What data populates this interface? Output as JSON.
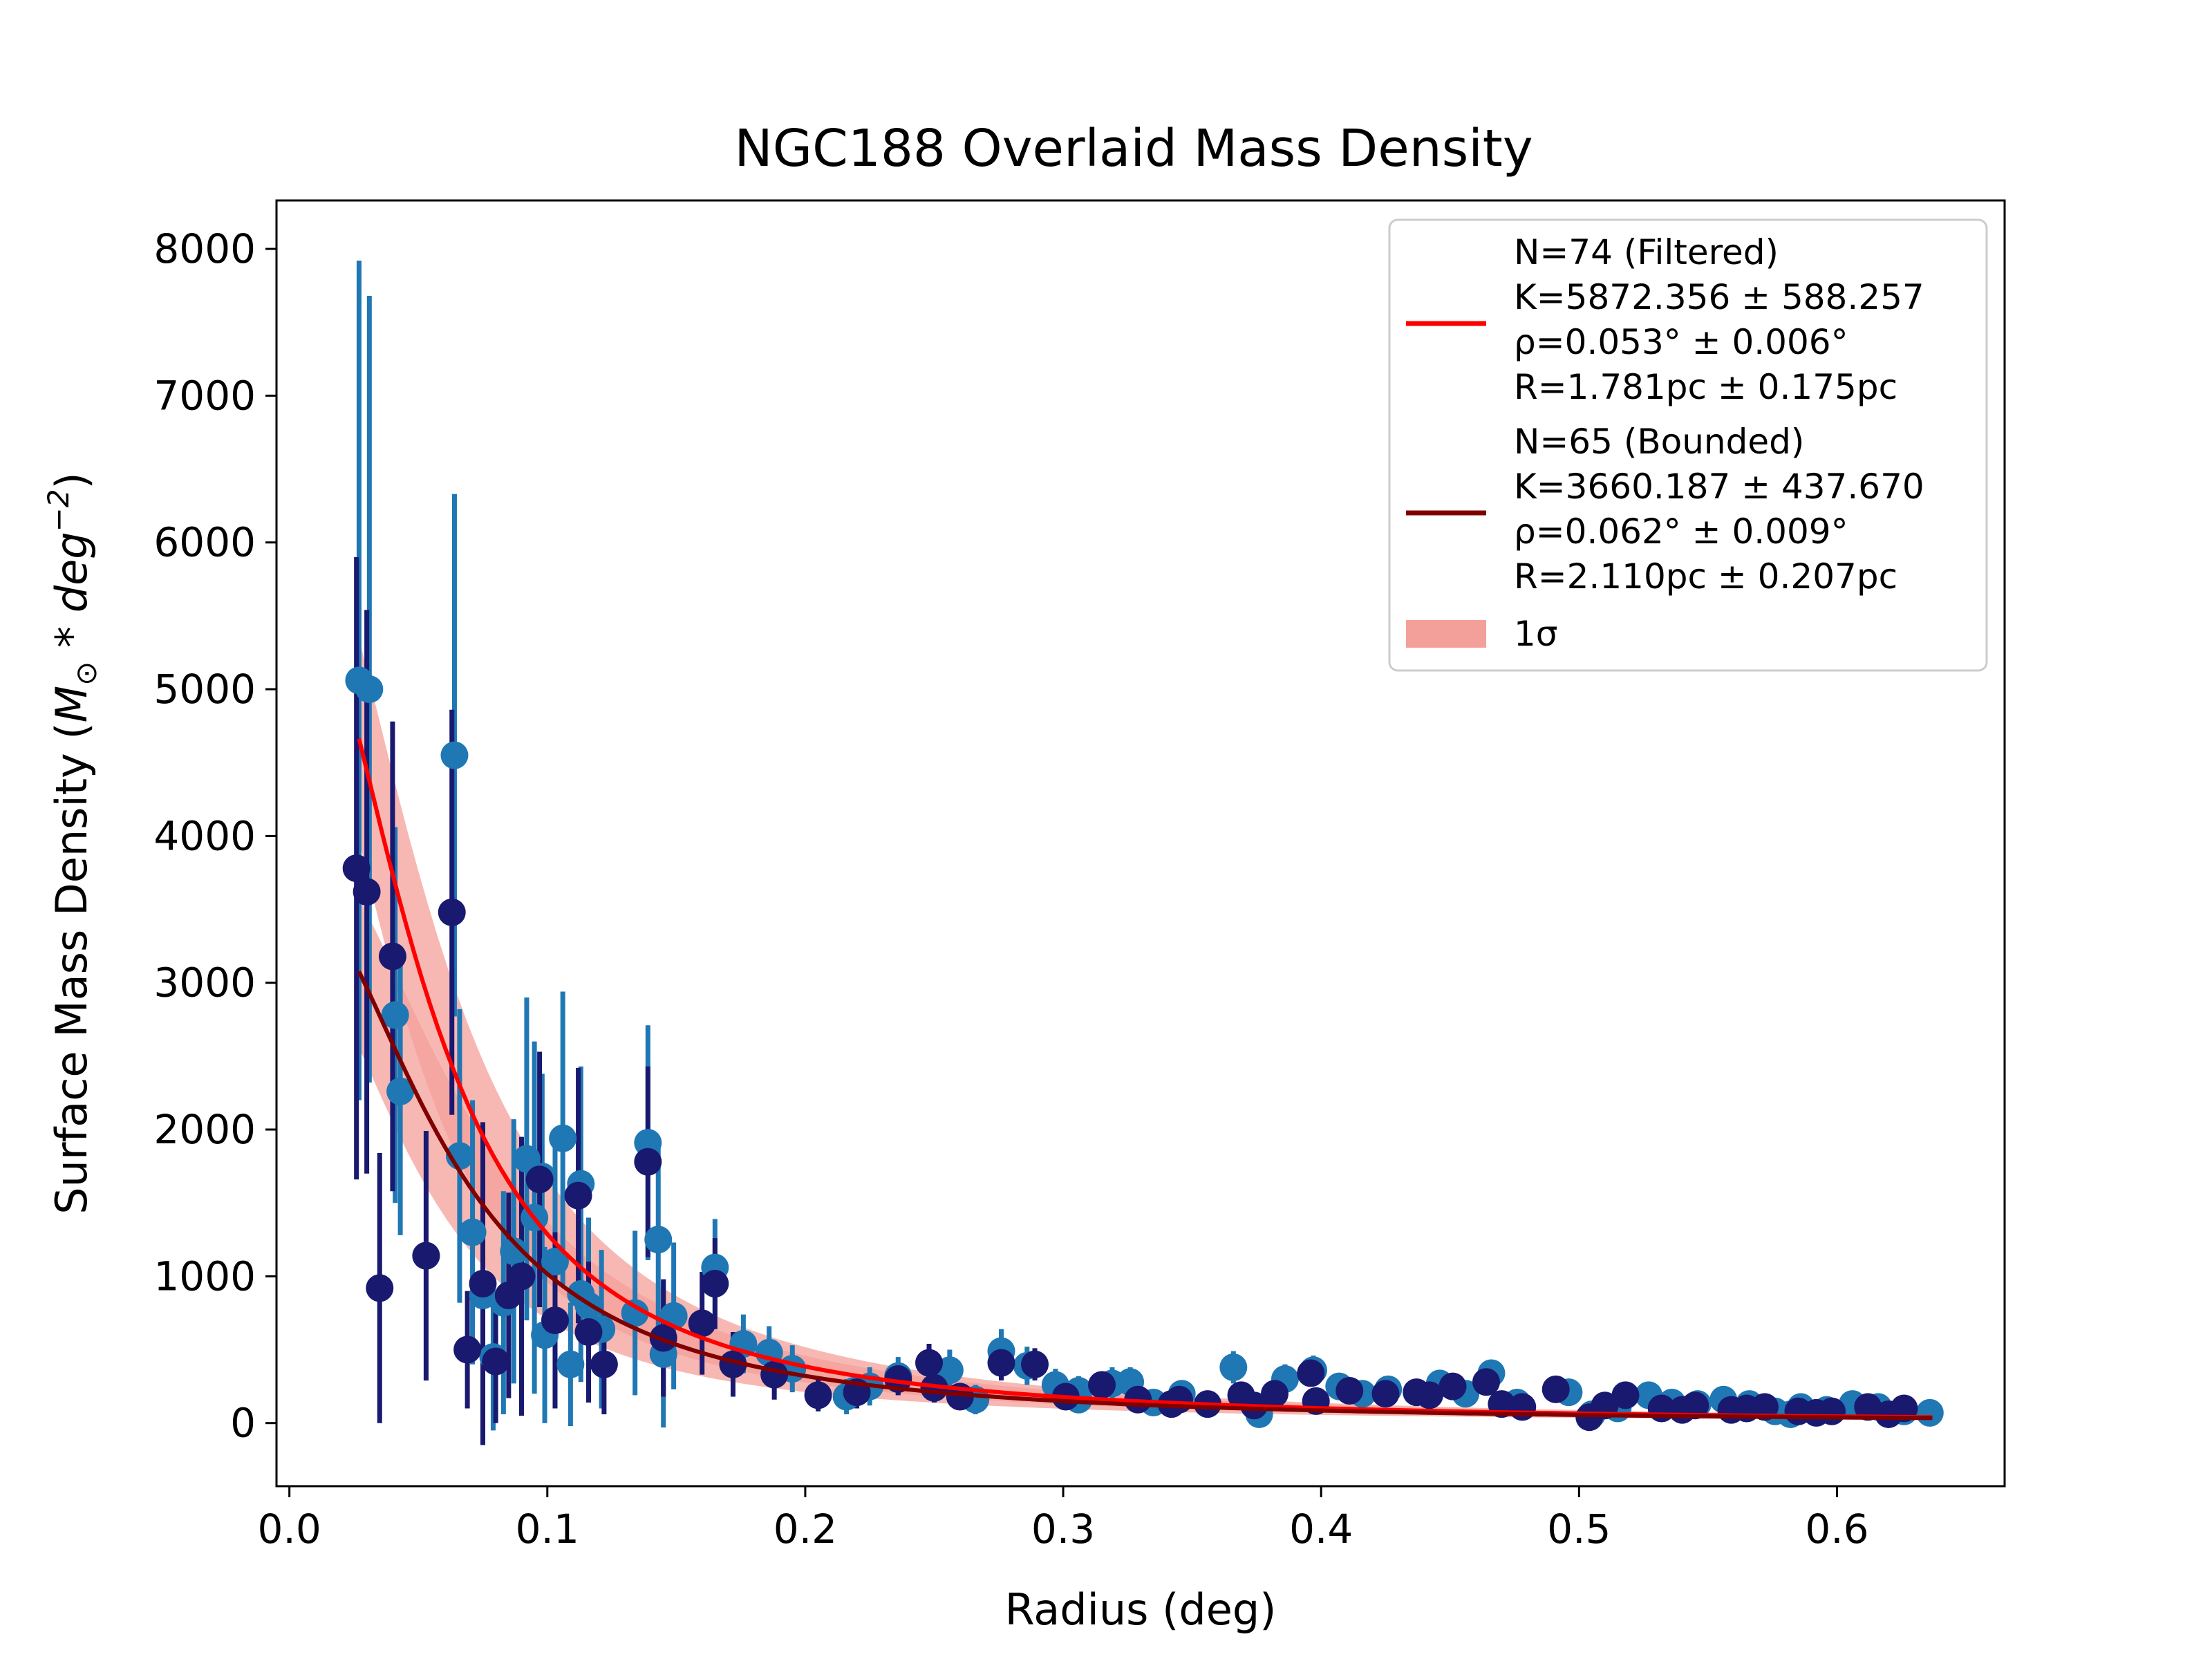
{
  "chart_data": {
    "type": "scatter",
    "title": "NGC188 Overlaid Mass Density",
    "xlabel": "Radius (deg)",
    "ylabel": "Surface Mass Density (M_⊙ * deg^−2)",
    "ylabel_parts": {
      "prefix": "Surface Mass Density (",
      "M": "M",
      "sun": "⊙",
      "op": " * ",
      "deg": "deg",
      "exp": "−2",
      "suffix": ")"
    },
    "xlim": [
      -0.005,
      0.665
    ],
    "ylim": [
      -430,
      8330
    ],
    "xticks": [
      0.0,
      0.1,
      0.2,
      0.3,
      0.4,
      0.5,
      0.6
    ],
    "xtick_labels": [
      "0.0",
      "0.1",
      "0.2",
      "0.3",
      "0.4",
      "0.5",
      "0.6"
    ],
    "yticks": [
      0,
      1000,
      2000,
      3000,
      4000,
      5000,
      6000,
      7000,
      8000
    ],
    "ytick_labels": [
      "0",
      "1000",
      "2000",
      "3000",
      "4000",
      "5000",
      "6000",
      "7000",
      "8000"
    ],
    "grid": false,
    "legend_position": "top-right",
    "legend": [
      {
        "kind": "line",
        "color": "#ff0000",
        "lines": [
          "N=74 (Filtered)",
          "K=5872.356 ± 588.257",
          "ρ=0.053° ± 0.006°",
          "R=1.781pc ± 0.175pc"
        ]
      },
      {
        "kind": "line",
        "color": "#800000",
        "lines": [
          "N=65 (Bounded)",
          "K=3660.187 ± 437.670",
          "ρ=0.062° ± 0.009°",
          "R=2.110pc ± 0.207pc"
        ]
      },
      {
        "kind": "band",
        "color": "#f4a09a",
        "lines": [
          "1σ"
        ]
      }
    ],
    "series": [
      {
        "color": "#1f77b4",
        "points": [
          [
            0.027,
            5060,
            2860
          ],
          [
            0.031,
            5000,
            2680
          ],
          [
            0.041,
            2780,
            1280
          ],
          [
            0.043,
            2260,
            980
          ],
          [
            0.053,
            1140,
            850
          ],
          [
            0.064,
            4550,
            1780
          ],
          [
            0.066,
            1820,
            1000
          ],
          [
            0.071,
            1300,
            900
          ],
          [
            0.075,
            870,
            750
          ],
          [
            0.079,
            450,
            500
          ],
          [
            0.083,
            820,
            760
          ],
          [
            0.087,
            1170,
            900
          ],
          [
            0.092,
            1800,
            1100
          ],
          [
            0.095,
            1400,
            1200
          ],
          [
            0.099,
            600,
            600
          ],
          [
            0.103,
            1100,
            900
          ],
          [
            0.106,
            1940,
            1000
          ],
          [
            0.109,
            400,
            420
          ],
          [
            0.113,
            1630,
            800
          ],
          [
            0.116,
            800,
            600
          ],
          [
            0.121,
            640,
            540
          ],
          [
            0.134,
            750,
            560
          ],
          [
            0.139,
            1910,
            800
          ],
          [
            0.143,
            1250,
            680
          ],
          [
            0.145,
            470,
            500
          ],
          [
            0.149,
            730,
            500
          ],
          [
            0.165,
            1060,
            330
          ],
          [
            0.176,
            540,
            200
          ],
          [
            0.186,
            480,
            180
          ],
          [
            0.195,
            370,
            160
          ],
          [
            0.216,
            180,
            120
          ],
          [
            0.225,
            250,
            130
          ],
          [
            0.236,
            320,
            130
          ],
          [
            0.256,
            360,
            140
          ],
          [
            0.266,
            160,
            100
          ],
          [
            0.276,
            490,
            150
          ],
          [
            0.286,
            390,
            130
          ],
          [
            0.297,
            260,
            110
          ],
          [
            0.306,
            220,
            100
          ],
          [
            0.319,
            270,
            110
          ],
          [
            0.326,
            280,
            100
          ],
          [
            0.335,
            140,
            90
          ],
          [
            0.346,
            200,
            90
          ],
          [
            0.366,
            380,
            110
          ],
          [
            0.376,
            60,
            60
          ],
          [
            0.386,
            300,
            100
          ],
          [
            0.397,
            360,
            100
          ],
          [
            0.407,
            250,
            90
          ],
          [
            0.416,
            200,
            80
          ],
          [
            0.426,
            230,
            80
          ],
          [
            0.446,
            270,
            80
          ],
          [
            0.456,
            200,
            80
          ],
          [
            0.466,
            340,
            90
          ],
          [
            0.476,
            140,
            70
          ],
          [
            0.496,
            210,
            80
          ],
          [
            0.505,
            60,
            50
          ],
          [
            0.515,
            100,
            60
          ],
          [
            0.527,
            190,
            70
          ],
          [
            0.536,
            140,
            60
          ],
          [
            0.546,
            130,
            60
          ],
          [
            0.556,
            160,
            60
          ],
          [
            0.566,
            130,
            60
          ],
          [
            0.576,
            80,
            50
          ],
          [
            0.586,
            110,
            50
          ],
          [
            0.596,
            90,
            50
          ],
          [
            0.606,
            130,
            50
          ],
          [
            0.616,
            110,
            50
          ],
          [
            0.626,
            80,
            40
          ],
          [
            0.636,
            70,
            40
          ],
          [
            0.098,
            1680,
            700
          ],
          [
            0.113,
            880,
            600
          ],
          [
            0.219,
            220,
            110
          ],
          [
            0.306,
            160,
            90
          ],
          [
            0.582,
            60,
            40
          ]
        ]
      },
      {
        "color": "#191970",
        "points": [
          [
            0.026,
            3780,
            2120
          ],
          [
            0.03,
            3620,
            1920
          ],
          [
            0.035,
            920,
            920
          ],
          [
            0.04,
            3180,
            1600
          ],
          [
            0.053,
            1140,
            850
          ],
          [
            0.063,
            3480,
            1380
          ],
          [
            0.069,
            500,
            400
          ],
          [
            0.075,
            950,
            1100
          ],
          [
            0.08,
            420,
            420
          ],
          [
            0.085,
            870,
            700
          ],
          [
            0.09,
            1000,
            950
          ],
          [
            0.097,
            1660,
            870
          ],
          [
            0.103,
            700,
            600
          ],
          [
            0.112,
            1550,
            870
          ],
          [
            0.116,
            620,
            480
          ],
          [
            0.122,
            400,
            340
          ],
          [
            0.139,
            1780,
            650
          ],
          [
            0.165,
            950,
            310
          ],
          [
            0.205,
            190,
            110
          ],
          [
            0.22,
            210,
            110
          ],
          [
            0.236,
            300,
            110
          ],
          [
            0.248,
            410,
            130
          ],
          [
            0.26,
            180,
            90
          ],
          [
            0.276,
            410,
            120
          ],
          [
            0.289,
            400,
            110
          ],
          [
            0.301,
            180,
            90
          ],
          [
            0.315,
            260,
            90
          ],
          [
            0.329,
            160,
            80
          ],
          [
            0.345,
            160,
            80
          ],
          [
            0.356,
            130,
            70
          ],
          [
            0.369,
            190,
            80
          ],
          [
            0.382,
            200,
            80
          ],
          [
            0.396,
            340,
            90
          ],
          [
            0.411,
            220,
            80
          ],
          [
            0.425,
            200,
            70
          ],
          [
            0.437,
            210,
            70
          ],
          [
            0.451,
            250,
            80
          ],
          [
            0.464,
            280,
            80
          ],
          [
            0.478,
            110,
            60
          ],
          [
            0.491,
            230,
            70
          ],
          [
            0.504,
            40,
            40
          ],
          [
            0.518,
            190,
            70
          ],
          [
            0.532,
            100,
            50
          ],
          [
            0.545,
            120,
            50
          ],
          [
            0.559,
            90,
            50
          ],
          [
            0.572,
            110,
            50
          ],
          [
            0.585,
            80,
            40
          ],
          [
            0.598,
            80,
            40
          ],
          [
            0.612,
            110,
            40
          ],
          [
            0.626,
            100,
            40
          ],
          [
            0.145,
            580,
            400
          ],
          [
            0.16,
            680,
            350
          ],
          [
            0.172,
            400,
            220
          ],
          [
            0.188,
            330,
            170
          ],
          [
            0.25,
            240,
            100
          ],
          [
            0.342,
            130,
            70
          ],
          [
            0.374,
            120,
            70
          ],
          [
            0.398,
            150,
            70
          ],
          [
            0.442,
            190,
            70
          ],
          [
            0.47,
            130,
            60
          ],
          [
            0.51,
            120,
            50
          ],
          [
            0.54,
            90,
            40
          ],
          [
            0.565,
            100,
            40
          ],
          [
            0.592,
            70,
            40
          ],
          [
            0.62,
            60,
            40
          ]
        ]
      }
    ],
    "fit_curves": [
      {
        "name": "N=74 (Filtered)",
        "color": "#ff0000",
        "K": 5872.356,
        "K_err": 588.257,
        "rho": 0.053,
        "rho_err": 0.006,
        "x_range": [
          0.027,
          0.637
        ]
      },
      {
        "name": "N=65 (Bounded)",
        "color": "#800000",
        "K": 3660.187,
        "K_err": 437.67,
        "rho": 0.062,
        "rho_err": 0.009,
        "x_range": [
          0.027,
          0.637
        ]
      }
    ],
    "band_color": "#f4a09a"
  }
}
